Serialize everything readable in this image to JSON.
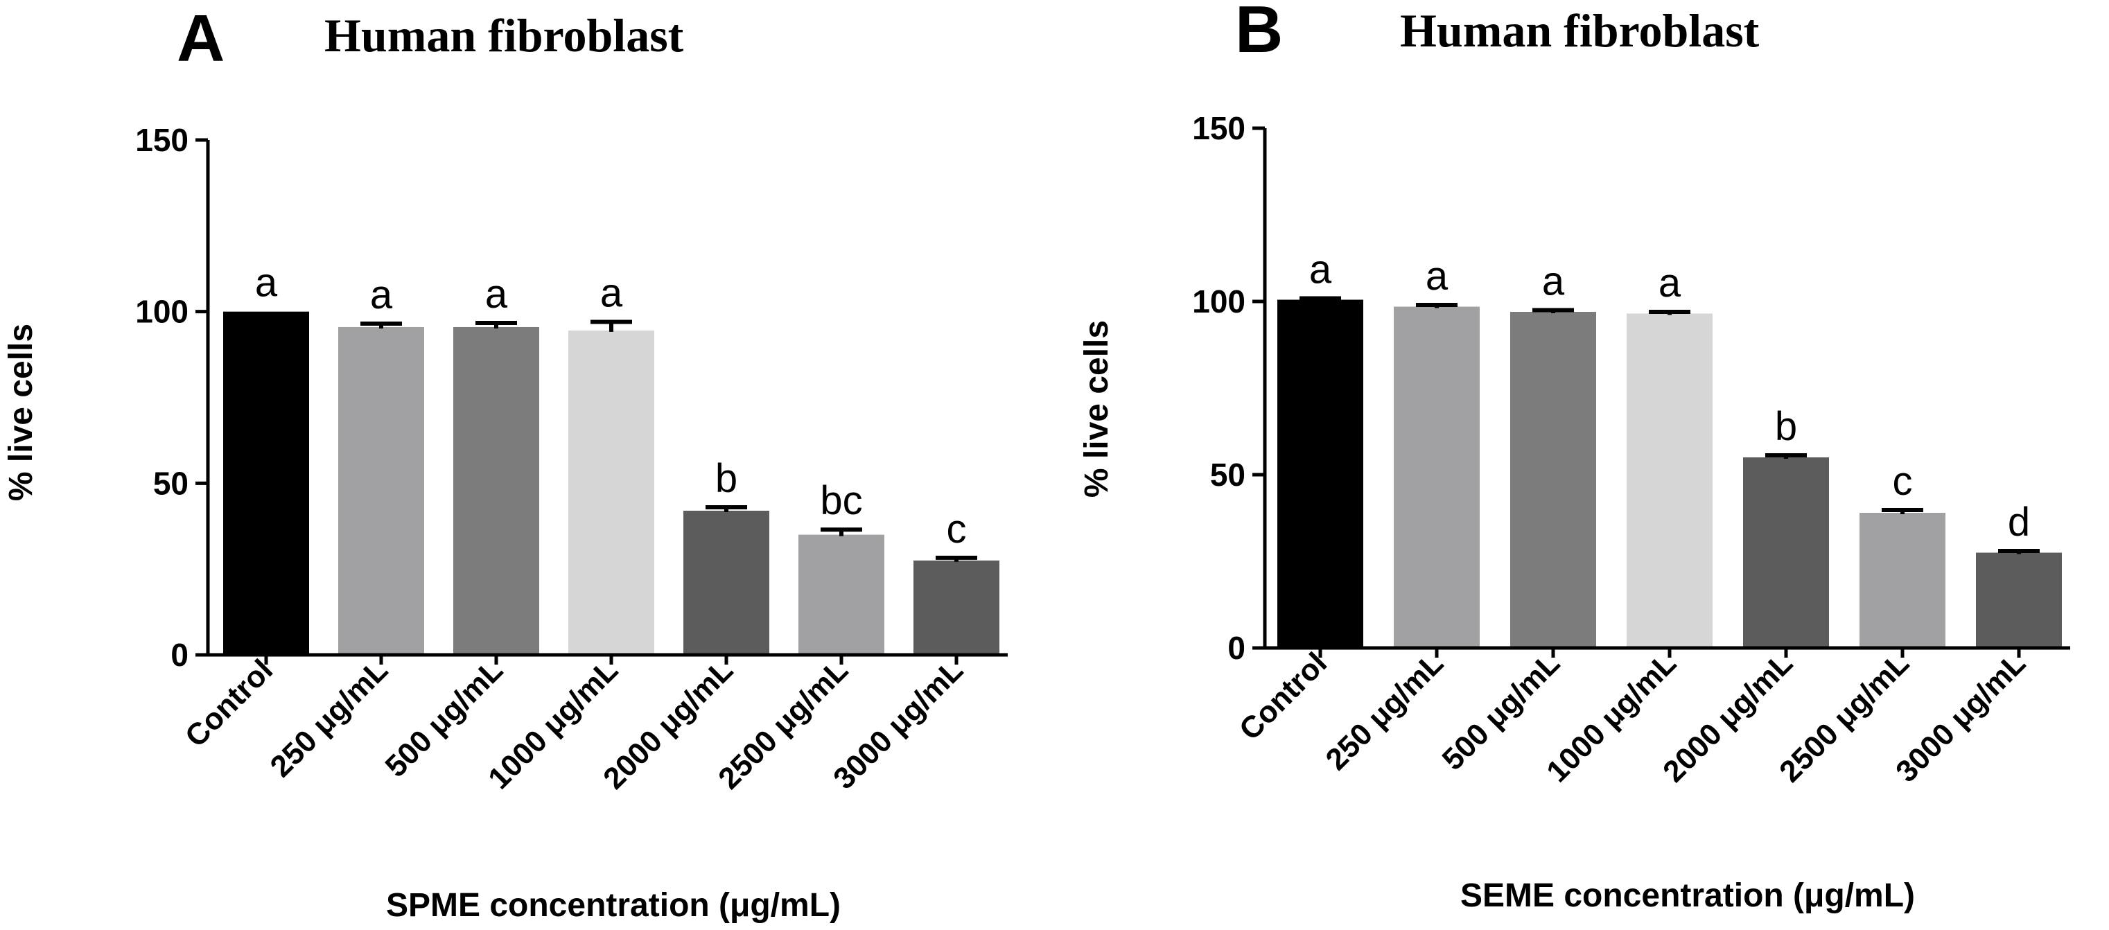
{
  "chart_data": [
    {
      "type": "bar",
      "panel": "A",
      "title": "Human fibroblast",
      "xlabel": "SPME concentration (μg/mL)",
      "ylabel": "% live cells",
      "ylim": [
        0,
        150
      ],
      "yticks": [
        "0",
        "50",
        "100",
        "150"
      ],
      "categories": [
        "Control",
        "250 μg/mL",
        "500 μg/mL",
        "1000 μg/mL",
        "2000 μg/mL",
        "2500 μg/mL",
        "3000 μg/mL"
      ],
      "values": [
        100,
        95.5,
        95.5,
        94.5,
        42,
        35,
        27.5
      ],
      "errors": [
        0,
        1,
        1.2,
        2.5,
        1,
        1.5,
        0.8
      ],
      "labels": [
        "a",
        "a",
        "a",
        "a",
        "b",
        "bc",
        "c"
      ],
      "colors": [
        "#000000",
        "#a1a1a4",
        "#7c7c7c",
        "#d6d6d6",
        "#5c5c5c",
        "#a1a1a4",
        "#5c5c5c"
      ]
    },
    {
      "type": "bar",
      "panel": "B",
      "title": "Human fibroblast",
      "xlabel": "SEME concentration (μg/mL)",
      "ylabel": "% live cells",
      "ylim": [
        0,
        150
      ],
      "yticks": [
        "0",
        "50",
        "100",
        "150"
      ],
      "categories": [
        "Control",
        "250 μg/mL",
        "500 μg/mL",
        "1000 μg/mL",
        "2000 μg/mL",
        "2500 μg/mL",
        "3000 μg/mL"
      ],
      "values": [
        100.5,
        98.5,
        97,
        96.5,
        55,
        39,
        27.5
      ],
      "errors": [
        0.4,
        0.5,
        0.5,
        0.5,
        0.6,
        0.8,
        0.5
      ],
      "labels": [
        "a",
        "a",
        "a",
        "a",
        "b",
        "c",
        "d"
      ],
      "colors": [
        "#000000",
        "#a1a1a4",
        "#7c7c7c",
        "#d6d6d6",
        "#5c5c5c",
        "#a1a1a4",
        "#5c5c5c"
      ]
    }
  ]
}
